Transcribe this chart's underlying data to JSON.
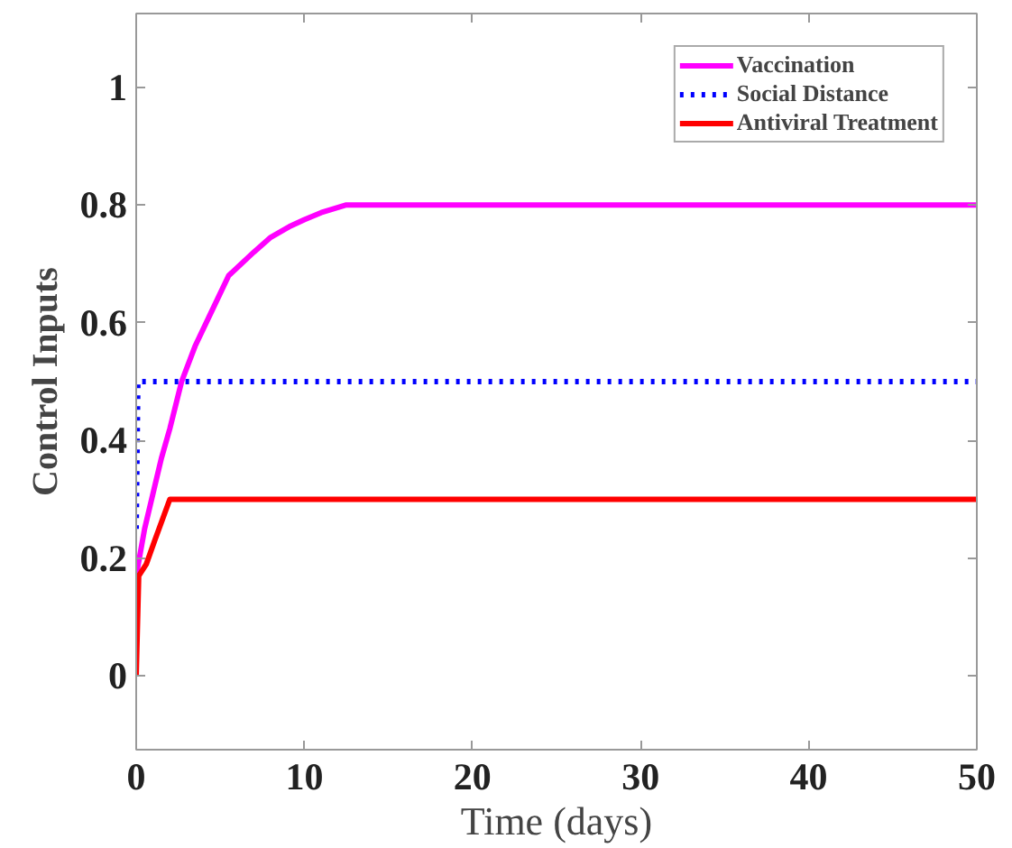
{
  "chart_data": {
    "type": "line",
    "xlabel": "Time (days)",
    "ylabel": "Control Inputs",
    "xlim": [
      0,
      50
    ],
    "xticks": [
      0,
      10,
      20,
      30,
      40,
      50
    ],
    "ylim": [
      -0.125,
      1.125
    ],
    "yticks": [
      0,
      0.2,
      0.4,
      0.6,
      0.8,
      1
    ],
    "grid": false,
    "legend": "top right",
    "marker": "none",
    "series": [
      {
        "name": "Vaccination",
        "color": "#ff00ff",
        "line_style": "solid",
        "x": [
          0,
          0.5,
          1,
          1.5,
          2,
          2.7,
          3.5,
          4.5,
          5.5,
          7,
          8,
          9.1,
          10,
          11,
          12.5,
          50
        ],
        "values": [
          0.17,
          0.25,
          0.31,
          0.37,
          0.42,
          0.5,
          0.56,
          0.62,
          0.68,
          0.72,
          0.745,
          0.763,
          0.775,
          0.787,
          0.8,
          0.8
        ]
      },
      {
        "name": "Social Distance",
        "color": "#0000ff",
        "line_style": "dotted",
        "x": [
          0,
          0.1,
          50
        ],
        "values": [
          0.25,
          0.5,
          0.5
        ]
      },
      {
        "name": "Antiviral Treatment",
        "color": "#ff0000",
        "line_style": "solid",
        "x": [
          0,
          0.15,
          0.6,
          1.1,
          2,
          50
        ],
        "values": [
          0,
          0.17,
          0.19,
          0.23,
          0.3,
          0.3
        ]
      }
    ]
  }
}
